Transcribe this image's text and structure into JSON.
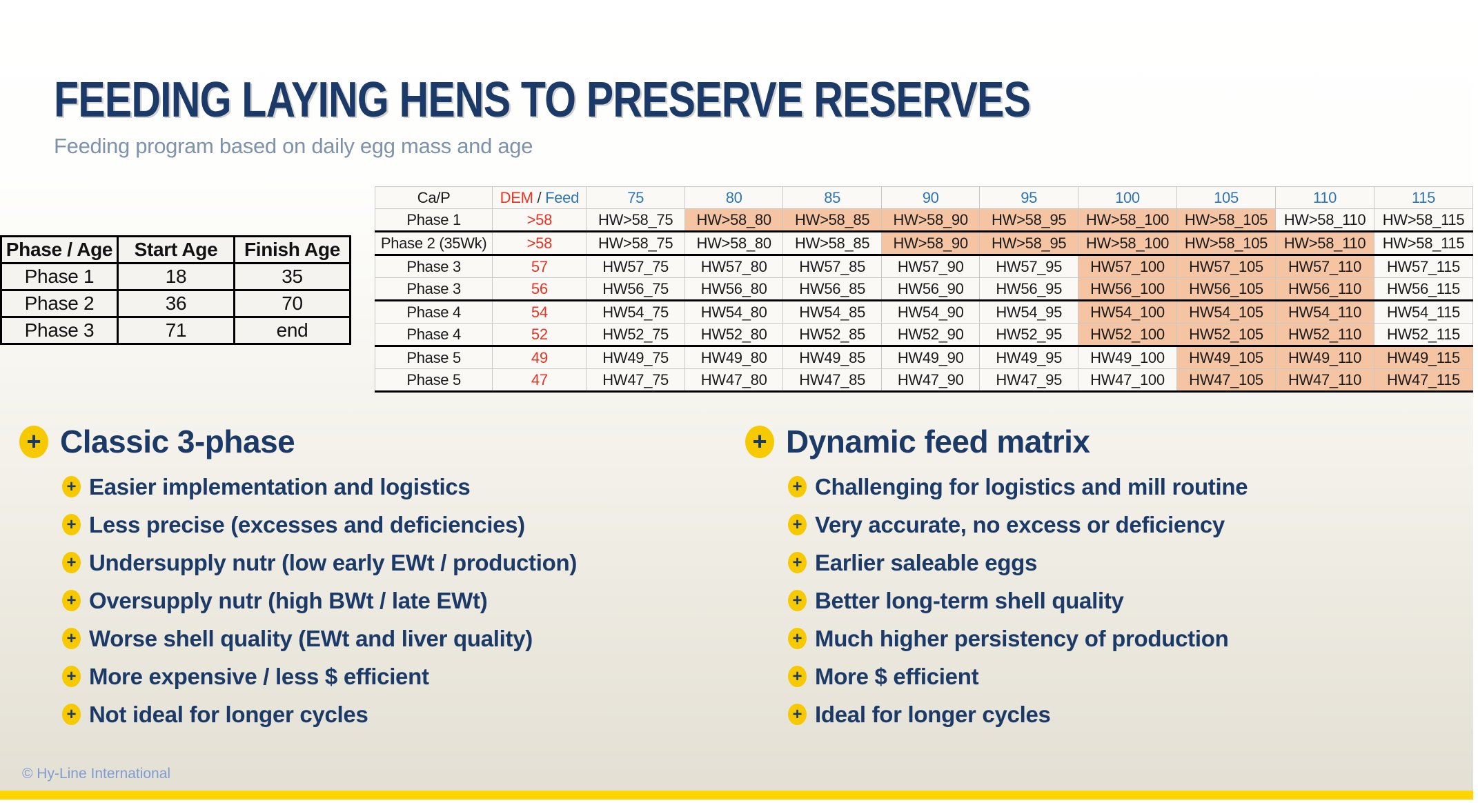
{
  "title": "FEEDING LAYING HENS TO PRESERVE RESERVES",
  "subtitle": "Feeding program based on daily egg mass and age",
  "icons": {
    "plus": "+"
  },
  "age_table": {
    "headers": [
      "Phase / Age",
      "Start Age",
      "Finish Age"
    ],
    "rows": [
      [
        "Phase 1",
        "18",
        "35"
      ],
      [
        "Phase 2",
        "36",
        "70"
      ],
      [
        "Phase 3",
        "71",
        "end"
      ]
    ]
  },
  "matrix": {
    "corner": "Ca/P",
    "dem_label": "DEM",
    "dem_feed_sep": " / ",
    "feed_label": "Feed",
    "columns": [
      "75",
      "80",
      "85",
      "90",
      "95",
      "100",
      "105",
      "110",
      "115"
    ],
    "rows": [
      {
        "phase": "Phase 1",
        "dem": ">58",
        "cells": [
          "HW>58_75",
          "HW>58_80",
          "HW>58_85",
          "HW>58_90",
          "HW>58_95",
          "HW>58_100",
          "HW>58_105",
          "HW>58_110",
          "HW>58_115"
        ],
        "highlight": [
          1,
          6
        ],
        "group_end": true
      },
      {
        "phase": "Phase 2 (35Wk)",
        "dem": ">58",
        "cells": [
          "HW>58_75",
          "HW>58_80",
          "HW>58_85",
          "HW>58_90",
          "HW>58_95",
          "HW>58_100",
          "HW>58_105",
          "HW>58_110",
          "HW>58_115"
        ],
        "highlight": [
          3,
          7
        ],
        "group_end": true
      },
      {
        "phase": "Phase 3",
        "dem": "57",
        "cells": [
          "HW57_75",
          "HW57_80",
          "HW57_85",
          "HW57_90",
          "HW57_95",
          "HW57_100",
          "HW57_105",
          "HW57_110",
          "HW57_115"
        ],
        "highlight": [
          5,
          7
        ],
        "group_end": false
      },
      {
        "phase": "Phase 3",
        "dem": "56",
        "cells": [
          "HW56_75",
          "HW56_80",
          "HW56_85",
          "HW56_90",
          "HW56_95",
          "HW56_100",
          "HW56_105",
          "HW56_110",
          "HW56_115"
        ],
        "highlight": [
          5,
          7
        ],
        "group_end": true
      },
      {
        "phase": "Phase 4",
        "dem": "54",
        "cells": [
          "HW54_75",
          "HW54_80",
          "HW54_85",
          "HW54_90",
          "HW54_95",
          "HW54_100",
          "HW54_105",
          "HW54_110",
          "HW54_115"
        ],
        "highlight": [
          5,
          7
        ],
        "group_end": false
      },
      {
        "phase": "Phase 4",
        "dem": "52",
        "cells": [
          "HW52_75",
          "HW52_80",
          "HW52_85",
          "HW52_90",
          "HW52_95",
          "HW52_100",
          "HW52_105",
          "HW52_110",
          "HW52_115"
        ],
        "highlight": [
          5,
          7
        ],
        "group_end": true
      },
      {
        "phase": "Phase 5",
        "dem": "49",
        "cells": [
          "HW49_75",
          "HW49_80",
          "HW49_85",
          "HW49_90",
          "HW49_95",
          "HW49_100",
          "HW49_105",
          "HW49_110",
          "HW49_115"
        ],
        "highlight": [
          6,
          8
        ],
        "group_end": false
      },
      {
        "phase": "Phase 5",
        "dem": "47",
        "cells": [
          "HW47_75",
          "HW47_80",
          "HW47_85",
          "HW47_90",
          "HW47_95",
          "HW47_100",
          "HW47_105",
          "HW47_110",
          "HW47_115"
        ],
        "highlight": [
          6,
          8
        ],
        "group_end": true
      }
    ]
  },
  "sections": [
    {
      "heading": "Classic 3-phase",
      "items": [
        "Easier implementation and logistics",
        "Less precise (excesses and deficiencies)",
        "Undersupply nutr (low early EWt / production)",
        "Oversupply nutr (high BWt / late EWt)",
        "Worse shell quality (EWt and liver quality)",
        "More expensive / less $ efficient",
        "Not ideal for longer cycles"
      ]
    },
    {
      "heading": "Dynamic feed matrix",
      "items": [
        "Challenging for logistics and mill routine",
        "Very accurate, no excess or deficiency",
        "Earlier saleable eggs",
        "Better long-term shell quality",
        "Much higher persistency of production",
        "More $ efficient",
        "Ideal for longer cycles"
      ]
    }
  ],
  "footer": {
    "copyright": "© Hy-Line International"
  },
  "colors": {
    "title_navy": "#1b3a67",
    "subtitle_gray_blue": "#7e92a9",
    "dem_red": "#ea3323",
    "header_blue": "#2e75b6",
    "highlight_salmon": "#f5c4a3",
    "bullet_yellow": "#f7c900",
    "bottom_bar_yellow": "#ffd500",
    "footer_blue": "#7e9cd0",
    "slide_bottom_beige": "#e3dfd3"
  }
}
